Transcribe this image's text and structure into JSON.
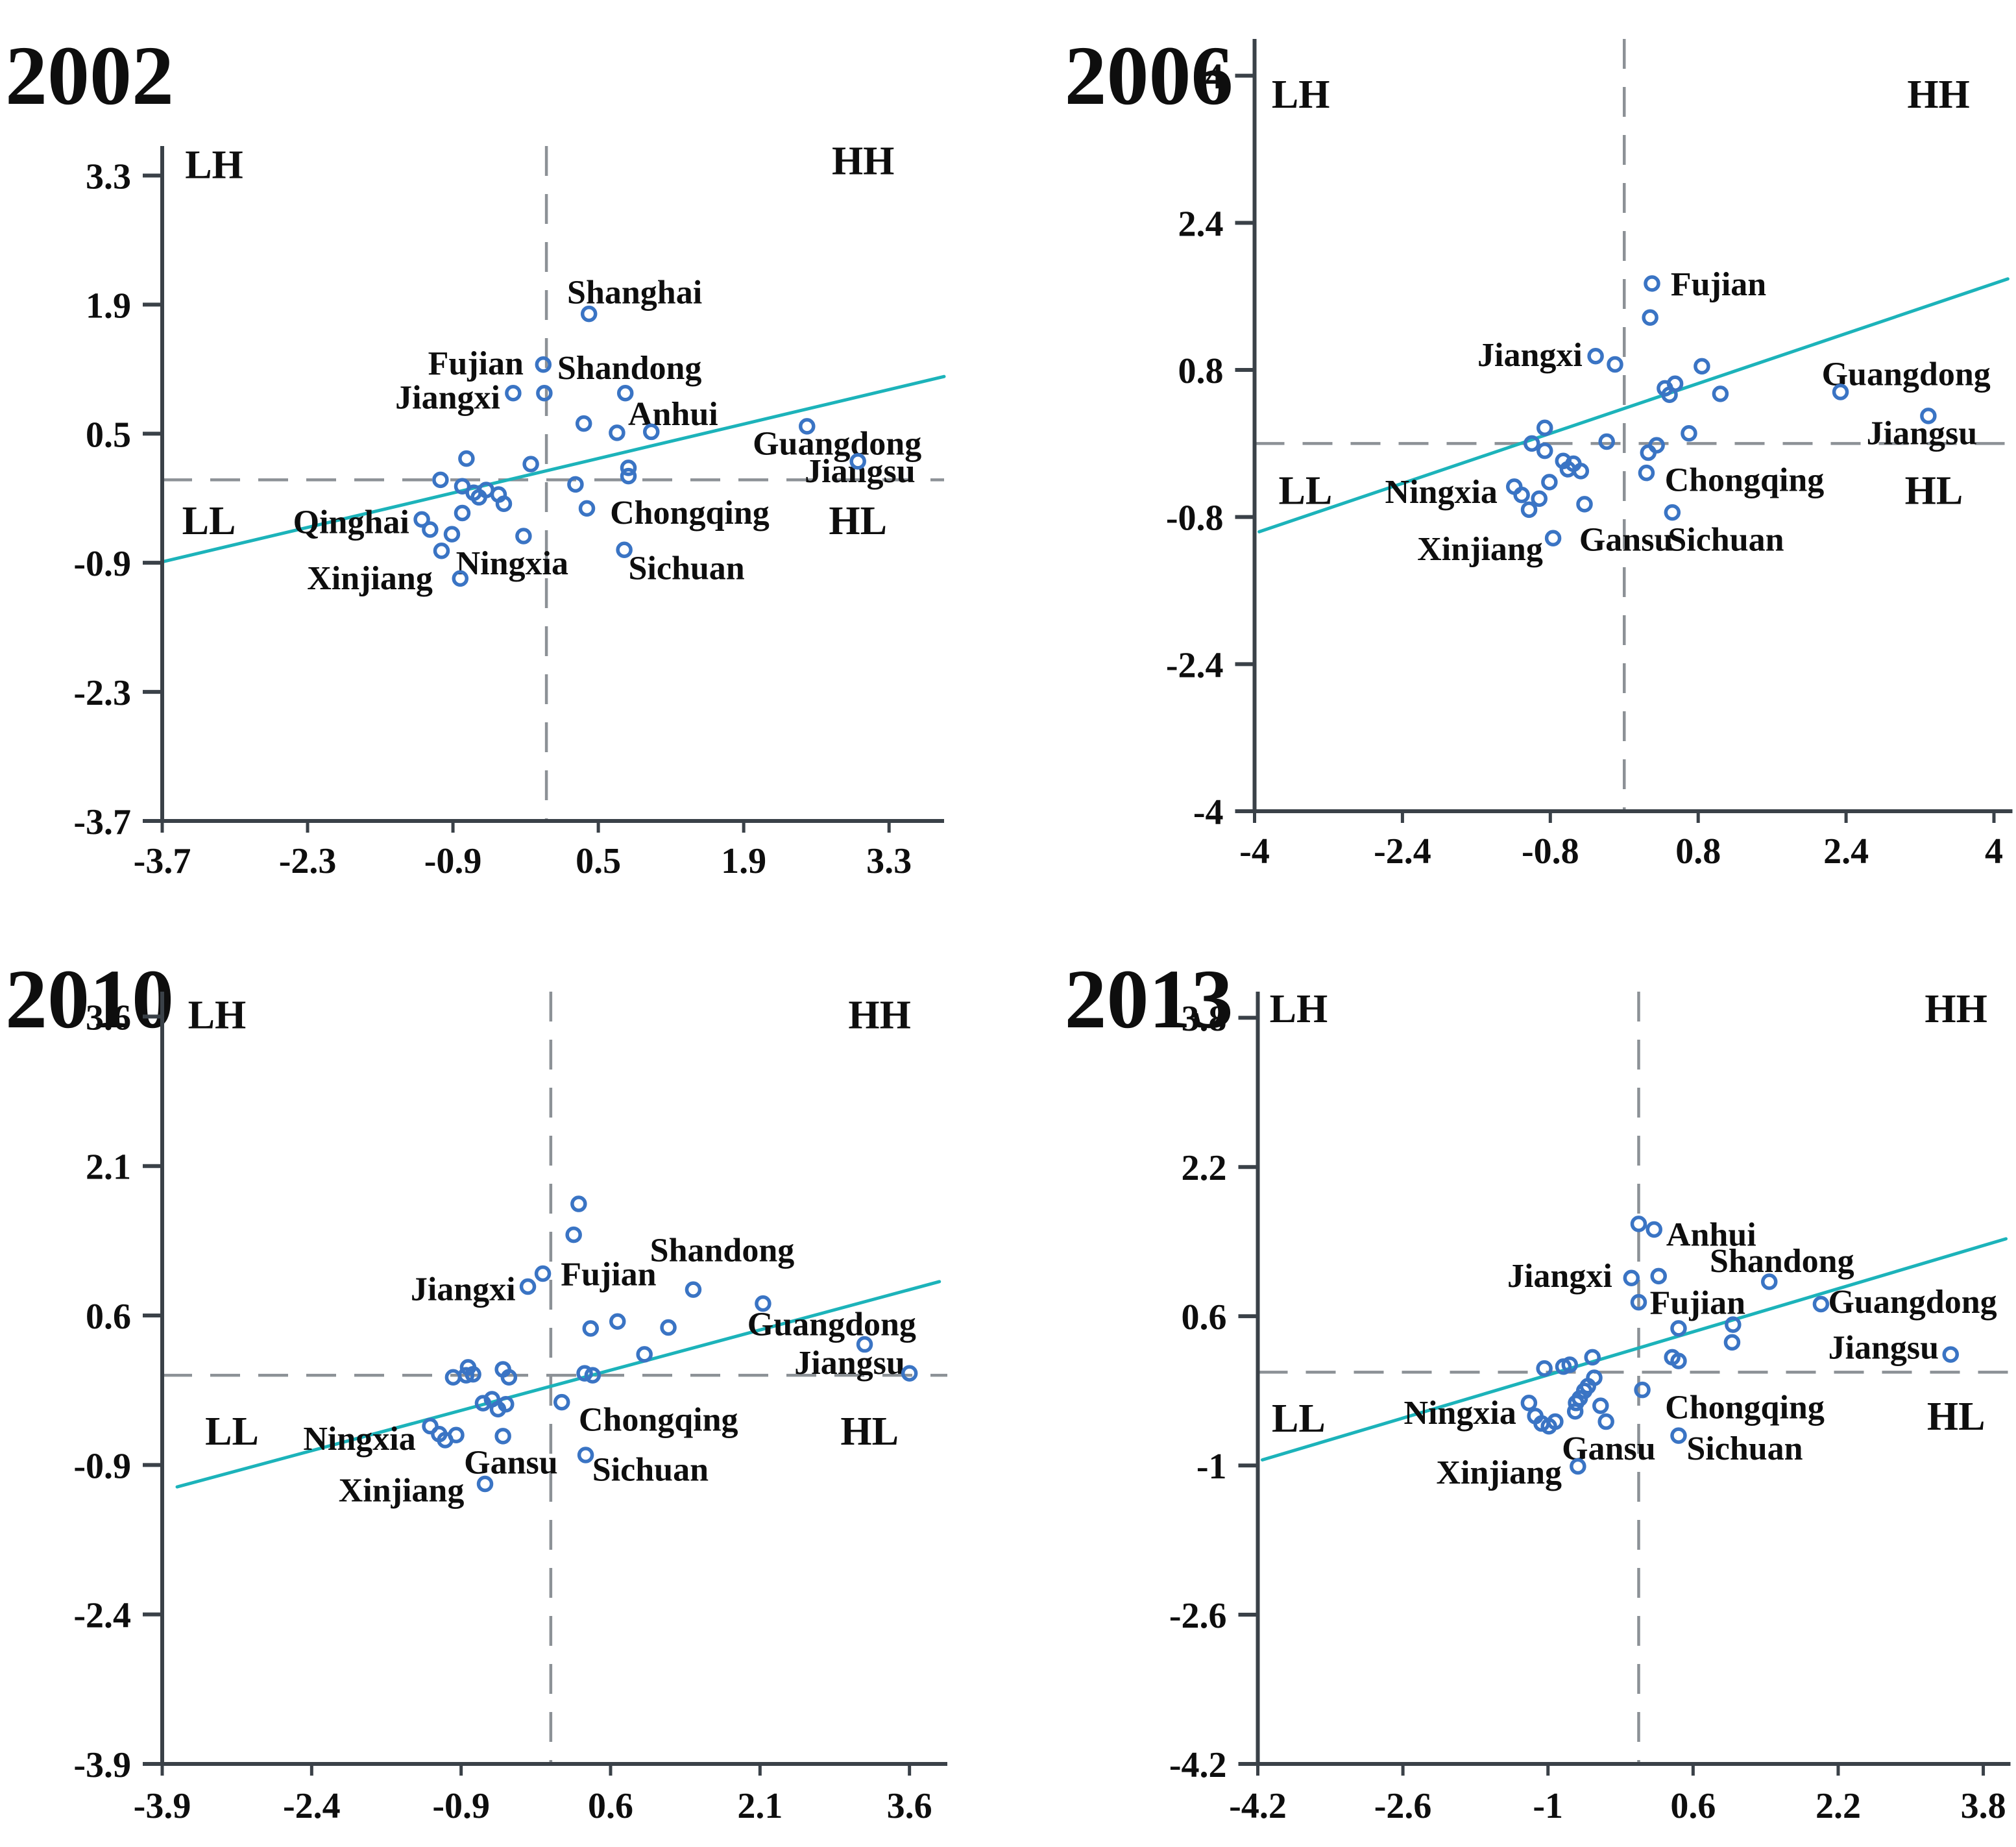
{
  "figure": {
    "background": "#ffffff",
    "description": "Four Moran scatter plots (2002, 2006, 2010, 2013) with LH/HH/LL/HL quadrants, dashed zero lines, teal regression line and labeled provinces"
  },
  "colors": {
    "point_stroke": "#3a74c4",
    "regression_line": "#1cb3ba",
    "dashed_line": "#8c9196",
    "axis": "#3a4148",
    "text": "#0e0e0e"
  },
  "chart_data": [
    {
      "title": "2002",
      "type": "scatter",
      "grid": false,
      "x_tick_labels": [
        "-3.7",
        "-2.3",
        "-0.9",
        "0.5",
        "1.9",
        "3.3"
      ],
      "y_tick_labels": [
        "3.3",
        "1.9",
        "0.5",
        "-0.9",
        "-2.3",
        "-3.7"
      ],
      "x_domain": [
        -3.7,
        3.83
      ],
      "y_domain": [
        -3.7,
        3.62
      ],
      "regression_line": {
        "x1": -3.7,
        "y1": -0.89,
        "x2": 3.83,
        "y2": 1.12
      },
      "quadrant_labels": [
        {
          "text": "LH",
          "x": -3.2,
          "y": 3.42
        },
        {
          "text": "HH",
          "x": 3.05,
          "y": 3.46
        },
        {
          "text": "LL",
          "x": -3.25,
          "y": -0.44
        },
        {
          "text": "HL",
          "x": 3.0,
          "y": -0.44
        }
      ],
      "province_labels": [
        {
          "text": "Shanghai",
          "x": 0.85,
          "y": 2.04
        },
        {
          "text": "Fujian",
          "x": -0.68,
          "y": 1.27
        },
        {
          "text": "Shandong",
          "x": 0.8,
          "y": 1.22
        },
        {
          "text": "Jiangxi",
          "x": -0.95,
          "y": 0.9
        },
        {
          "text": "Anhui",
          "x": 1.22,
          "y": 0.72
        },
        {
          "text": "Guangdong",
          "x": 2.8,
          "y": 0.4
        },
        {
          "text": "Jiangsu",
          "x": 3.02,
          "y": 0.1
        },
        {
          "text": "Qinghai",
          "x": -1.88,
          "y": -0.45
        },
        {
          "text": "Ningxia",
          "x": -0.33,
          "y": -0.9
        },
        {
          "text": "Xinjiang",
          "x": -1.7,
          "y": -1.06
        },
        {
          "text": "Chongqing",
          "x": 1.38,
          "y": -0.35
        },
        {
          "text": "Sichuan",
          "x": 1.35,
          "y": -0.95
        }
      ],
      "points": [
        [
          0.41,
          1.8
        ],
        [
          -0.03,
          1.25
        ],
        [
          -0.32,
          0.94
        ],
        [
          -0.02,
          0.94
        ],
        [
          0.76,
          0.94
        ],
        [
          0.36,
          0.61
        ],
        [
          0.68,
          0.51
        ],
        [
          1.01,
          0.52
        ],
        [
          2.51,
          0.58
        ],
        [
          3.0,
          0.2
        ],
        [
          -0.77,
          0.23
        ],
        [
          -0.15,
          0.17
        ],
        [
          -1.02,
          0.0
        ],
        [
          -0.81,
          -0.07
        ],
        [
          -0.7,
          -0.14
        ],
        [
          -0.65,
          -0.19
        ],
        [
          -0.58,
          -0.11
        ],
        [
          -0.46,
          -0.16
        ],
        [
          -0.41,
          -0.26
        ],
        [
          0.28,
          -0.05
        ],
        [
          0.79,
          0.13
        ],
        [
          0.79,
          0.04
        ],
        [
          0.39,
          -0.31
        ],
        [
          -1.2,
          -0.43
        ],
        [
          -1.12,
          -0.54
        ],
        [
          -0.91,
          -0.59
        ],
        [
          -0.81,
          -0.36
        ],
        [
          -0.22,
          -0.61
        ],
        [
          -1.01,
          -0.77
        ],
        [
          0.75,
          -0.76
        ],
        [
          -0.83,
          -1.07
        ]
      ]
    },
    {
      "title": "2006",
      "type": "scatter",
      "grid": false,
      "x_tick_labels": [
        "-4",
        "-2.4",
        "-0.8",
        "0.8",
        "2.4",
        "4"
      ],
      "y_tick_labels": [
        "4",
        "2.4",
        "0.8",
        "-0.8",
        "-2.4",
        "-4"
      ],
      "x_domain": [
        -4,
        4.2
      ],
      "y_domain": [
        -4,
        4.4
      ],
      "regression_line": {
        "x1": -3.95,
        "y1": -0.96,
        "x2": 4.15,
        "y2": 1.79
      },
      "quadrant_labels": [
        {
          "text": "LH",
          "x": -3.5,
          "y": 3.8
        },
        {
          "text": "HH",
          "x": 3.4,
          "y": 3.8
        },
        {
          "text": "LL",
          "x": -3.45,
          "y": -0.51
        },
        {
          "text": "HL",
          "x": 3.35,
          "y": -0.51
        }
      ],
      "province_labels": [
        {
          "text": "Fujian",
          "x": 1.02,
          "y": 1.74
        },
        {
          "text": "Jiangxi",
          "x": -1.02,
          "y": 0.97
        },
        {
          "text": "Guangdong",
          "x": 3.05,
          "y": 0.76
        },
        {
          "text": "Jiangsu",
          "x": 3.22,
          "y": 0.12
        },
        {
          "text": "Ningxia",
          "x": -1.98,
          "y": -0.52
        },
        {
          "text": "Xinjiang",
          "x": -1.56,
          "y": -1.14
        },
        {
          "text": "Gansu",
          "x": 0.02,
          "y": -1.04
        },
        {
          "text": "Sichuan",
          "x": 1.1,
          "y": -1.04
        },
        {
          "text": "Chongqing",
          "x": 1.3,
          "y": -0.39
        }
      ],
      "points": [
        [
          0.3,
          1.74
        ],
        [
          0.28,
          1.37
        ],
        [
          -0.31,
          0.95
        ],
        [
          -0.1,
          0.86
        ],
        [
          0.84,
          0.84
        ],
        [
          0.44,
          0.6
        ],
        [
          0.55,
          0.65
        ],
        [
          0.49,
          0.53
        ],
        [
          1.04,
          0.54
        ],
        [
          2.34,
          0.56
        ],
        [
          3.29,
          0.3
        ],
        [
          -0.86,
          0.17
        ],
        [
          -1.0,
          0.0
        ],
        [
          -0.86,
          -0.08
        ],
        [
          -0.19,
          0.02
        ],
        [
          0.26,
          -0.1
        ],
        [
          0.35,
          -0.02
        ],
        [
          0.7,
          0.11
        ],
        [
          -0.66,
          -0.19
        ],
        [
          -0.55,
          -0.22
        ],
        [
          -0.61,
          -0.28
        ],
        [
          -0.47,
          -0.3
        ],
        [
          -0.81,
          -0.42
        ],
        [
          -1.19,
          -0.47
        ],
        [
          -1.11,
          -0.56
        ],
        [
          -1.03,
          -0.72
        ],
        [
          -0.92,
          -0.6
        ],
        [
          -0.43,
          -0.66
        ],
        [
          0.24,
          -0.32
        ],
        [
          0.52,
          -0.75
        ],
        [
          -0.77,
          -1.03
        ]
      ]
    },
    {
      "title": "2010",
      "type": "scatter",
      "grid": false,
      "x_tick_labels": [
        "-3.9",
        "-2.4",
        "-0.9",
        "0.6",
        "2.1",
        "3.6"
      ],
      "y_tick_labels": [
        "3.6",
        "2.1",
        "0.6",
        "-0.9",
        "-2.4",
        "-3.9"
      ],
      "x_domain": [
        -3.9,
        3.98
      ],
      "y_domain": [
        -3.9,
        3.85
      ],
      "regression_line": {
        "x1": -3.75,
        "y1": -1.12,
        "x2": 3.9,
        "y2": 0.94
      },
      "quadrant_labels": [
        {
          "text": "LH",
          "x": -3.35,
          "y": 3.62
        },
        {
          "text": "HH",
          "x": 3.3,
          "y": 3.62
        },
        {
          "text": "LL",
          "x": -3.2,
          "y": -0.56
        },
        {
          "text": "HL",
          "x": 3.2,
          "y": -0.56
        }
      ],
      "province_labels": [
        {
          "text": "Jiangxi",
          "x": -0.88,
          "y": 0.87
        },
        {
          "text": "Fujian",
          "x": 0.58,
          "y": 1.02
        },
        {
          "text": "Shandong",
          "x": 1.72,
          "y": 1.26
        },
        {
          "text": "Guangdong",
          "x": 2.82,
          "y": 0.52
        },
        {
          "text": "Jiangsu",
          "x": 3.0,
          "y": 0.13
        },
        {
          "text": "Ningxia",
          "x": -1.92,
          "y": -0.63
        },
        {
          "text": "Xinjiang",
          "x": -1.5,
          "y": -1.15
        },
        {
          "text": "Gansu",
          "x": -0.4,
          "y": -0.87
        },
        {
          "text": "Sichuan",
          "x": 1.0,
          "y": -0.94
        },
        {
          "text": "Chongqing",
          "x": 1.08,
          "y": -0.44
        }
      ],
      "points": [
        [
          0.28,
          1.72
        ],
        [
          0.23,
          1.41
        ],
        [
          -0.23,
          0.89
        ],
        [
          -0.08,
          1.02
        ],
        [
          1.43,
          0.86
        ],
        [
          2.13,
          0.72
        ],
        [
          0.4,
          0.47
        ],
        [
          0.67,
          0.54
        ],
        [
          1.18,
          0.48
        ],
        [
          0.94,
          0.21
        ],
        [
          3.15,
          0.31
        ],
        [
          3.6,
          0.02
        ],
        [
          -0.98,
          -0.02
        ],
        [
          -0.85,
          0.0
        ],
        [
          -0.83,
          0.08
        ],
        [
          -0.78,
          0.01
        ],
        [
          -0.48,
          0.06
        ],
        [
          -0.42,
          -0.02
        ],
        [
          0.34,
          0.02
        ],
        [
          0.42,
          0.0
        ],
        [
          -0.68,
          -0.28
        ],
        [
          -0.59,
          -0.24
        ],
        [
          -0.53,
          -0.34
        ],
        [
          -0.45,
          -0.29
        ],
        [
          0.11,
          -0.27
        ],
        [
          -1.21,
          -0.51
        ],
        [
          -1.12,
          -0.59
        ],
        [
          -1.06,
          -0.65
        ],
        [
          -0.95,
          -0.6
        ],
        [
          -0.48,
          -0.61
        ],
        [
          0.35,
          -0.8
        ],
        [
          -0.66,
          -1.09
        ]
      ]
    },
    {
      "title": "2013",
      "type": "scatter",
      "grid": false,
      "x_tick_labels": [
        "-4.2",
        "-2.6",
        "-1",
        "0.6",
        "2.2",
        "3.8"
      ],
      "y_tick_labels": [
        "3.8",
        "2.2",
        "0.6",
        "-1",
        "-2.6",
        "-4.2"
      ],
      "x_domain": [
        -4.2,
        4.1
      ],
      "y_domain": [
        -4.2,
        4.08
      ],
      "regression_line": {
        "x1": -4.15,
        "y1": -0.94,
        "x2": 4.05,
        "y2": 1.43
      },
      "quadrant_labels": [
        {
          "text": "LH",
          "x": -3.75,
          "y": 3.9
        },
        {
          "text": "HH",
          "x": 3.5,
          "y": 3.9
        },
        {
          "text": "LL",
          "x": -3.75,
          "y": -0.49
        },
        {
          "text": "HL",
          "x": 3.5,
          "y": -0.47
        }
      ],
      "province_labels": [
        {
          "text": "Anhui",
          "x": 0.8,
          "y": 1.48
        },
        {
          "text": "Jiangxi",
          "x": -0.87,
          "y": 1.04
        },
        {
          "text": "Fujian",
          "x": 0.65,
          "y": 0.75
        },
        {
          "text": "Shandong",
          "x": 1.58,
          "y": 1.2
        },
        {
          "text": "Guangdong",
          "x": 3.02,
          "y": 0.76
        },
        {
          "text": "Jiangsu",
          "x": 2.7,
          "y": 0.27
        },
        {
          "text": "Ningxia",
          "x": -1.97,
          "y": -0.43
        },
        {
          "text": "Xinjiang",
          "x": -1.54,
          "y": -1.07
        },
        {
          "text": "Gansu",
          "x": -0.33,
          "y": -0.81
        },
        {
          "text": "Sichuan",
          "x": 1.17,
          "y": -0.81
        },
        {
          "text": "Chongqing",
          "x": 1.17,
          "y": -0.37
        }
      ],
      "points": [
        [
          0.0,
          1.59
        ],
        [
          0.17,
          1.53
        ],
        [
          -0.08,
          1.01
        ],
        [
          0.22,
          1.03
        ],
        [
          0.0,
          0.75
        ],
        [
          1.44,
          0.97
        ],
        [
          2.01,
          0.73
        ],
        [
          0.44,
          0.47
        ],
        [
          1.04,
          0.51
        ],
        [
          1.03,
          0.32
        ],
        [
          0.37,
          0.16
        ],
        [
          0.44,
          0.12
        ],
        [
          3.44,
          0.19
        ],
        [
          -1.04,
          0.04
        ],
        [
          -0.83,
          0.06
        ],
        [
          -0.76,
          0.08
        ],
        [
          -0.51,
          0.16
        ],
        [
          -0.49,
          -0.06
        ],
        [
          -0.56,
          -0.15
        ],
        [
          -0.6,
          -0.2
        ],
        [
          -0.65,
          -0.28
        ],
        [
          -0.69,
          -0.33
        ],
        [
          -0.42,
          -0.36
        ],
        [
          -0.36,
          -0.53
        ],
        [
          0.04,
          -0.19
        ],
        [
          -1.21,
          -0.33
        ],
        [
          -1.14,
          -0.47
        ],
        [
          -1.07,
          -0.55
        ],
        [
          -0.99,
          -0.58
        ],
        [
          -0.92,
          -0.53
        ],
        [
          0.44,
          -0.68
        ],
        [
          -0.67,
          -1.01
        ],
        [
          -0.7,
          -0.42
        ]
      ]
    }
  ]
}
